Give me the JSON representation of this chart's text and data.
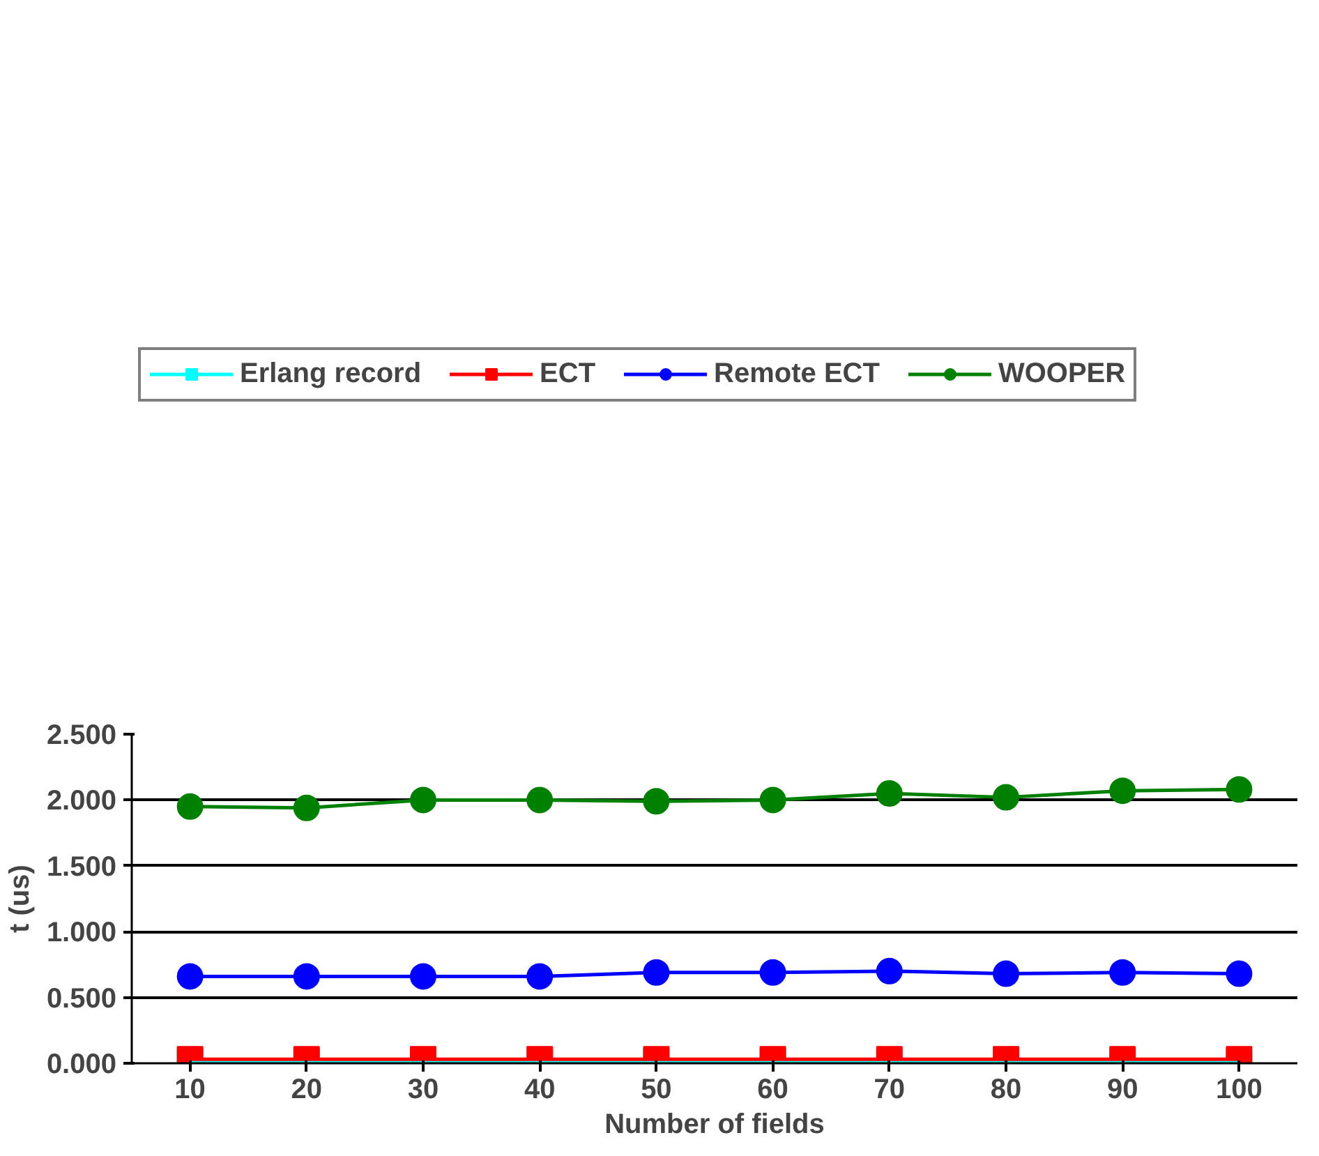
{
  "chart_data": {
    "type": "line",
    "xlabel": "Number of fields",
    "ylabel": "t (us)",
    "categories": [
      "10",
      "20",
      "30",
      "40",
      "50",
      "60",
      "70",
      "80",
      "90",
      "100"
    ],
    "ylim": [
      0,
      2.5
    ],
    "yticks": [
      {
        "value": 0,
        "label": "0.000"
      },
      {
        "value": 0.5,
        "label": "0.500"
      },
      {
        "value": 1,
        "label": "1.000"
      },
      {
        "value": 1.5,
        "label": "1.500"
      },
      {
        "value": 2,
        "label": "2.000"
      },
      {
        "value": 2.5,
        "label": "2.500"
      }
    ],
    "grid": "y",
    "legend": "top",
    "series": [
      {
        "name": "Erlang record",
        "color": "#00ffff",
        "marker": "square",
        "values": [
          0.015,
          0.015,
          0.015,
          0.015,
          0.015,
          0.015,
          0.015,
          0.015,
          0.015,
          0.015
        ]
      },
      {
        "name": "ECT",
        "color": "#ff0000",
        "marker": "square",
        "values": [
          0.03,
          0.03,
          0.03,
          0.03,
          0.03,
          0.03,
          0.03,
          0.03,
          0.03,
          0.03
        ]
      },
      {
        "name": "Remote ECT",
        "color": "#0000ff",
        "marker": "circle",
        "values": [
          0.66,
          0.66,
          0.66,
          0.66,
          0.69,
          0.69,
          0.7,
          0.68,
          0.69,
          0.68
        ]
      },
      {
        "name": "WOOPER",
        "color": "#008000",
        "marker": "circle",
        "values": [
          1.95,
          1.94,
          2.0,
          2.0,
          1.99,
          2.0,
          2.05,
          2.02,
          2.07,
          2.08
        ]
      }
    ]
  }
}
